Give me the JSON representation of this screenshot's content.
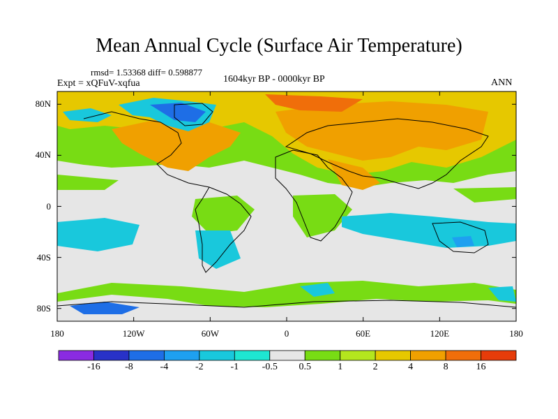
{
  "title": "Mean Annual Cycle (Surface Air Temperature)",
  "stats_text": "rmsd= 1.53368  diff= 0.598877",
  "experiment_text": "Expt = xQFuV-xqfua",
  "period_text": "1604kyr BP - 0000kyr BP",
  "season_text": "ANN",
  "lat_ticks": [
    {
      "value": 80,
      "label": "80N"
    },
    {
      "value": 40,
      "label": "40N"
    },
    {
      "value": 0,
      "label": "0"
    },
    {
      "value": -40,
      "label": "40S"
    },
    {
      "value": -80,
      "label": "80S"
    }
  ],
  "lon_ticks": [
    {
      "value": -180,
      "label": "180"
    },
    {
      "value": -120,
      "label": "120W"
    },
    {
      "value": -60,
      "label": "60W"
    },
    {
      "value": 0,
      "label": "0"
    },
    {
      "value": 60,
      "label": "60E"
    },
    {
      "value": 120,
      "label": "120E"
    },
    {
      "value": 180,
      "label": "180"
    }
  ],
  "colorbar": {
    "boundaries": [
      "-16",
      "-8",
      "-4",
      "-2",
      "-1",
      "-0.5",
      "0.5",
      "1",
      "2",
      "4",
      "8",
      "16"
    ],
    "colors": [
      "#8a2be2",
      "#2832c8",
      "#1e6ee6",
      "#1ea0f0",
      "#19c8dc",
      "#1ee6d2",
      "#e6e6e6",
      "#78dc14",
      "#b4e61e",
      "#e6c800",
      "#f0a000",
      "#f06e0a",
      "#e63c0a"
    ]
  }
}
